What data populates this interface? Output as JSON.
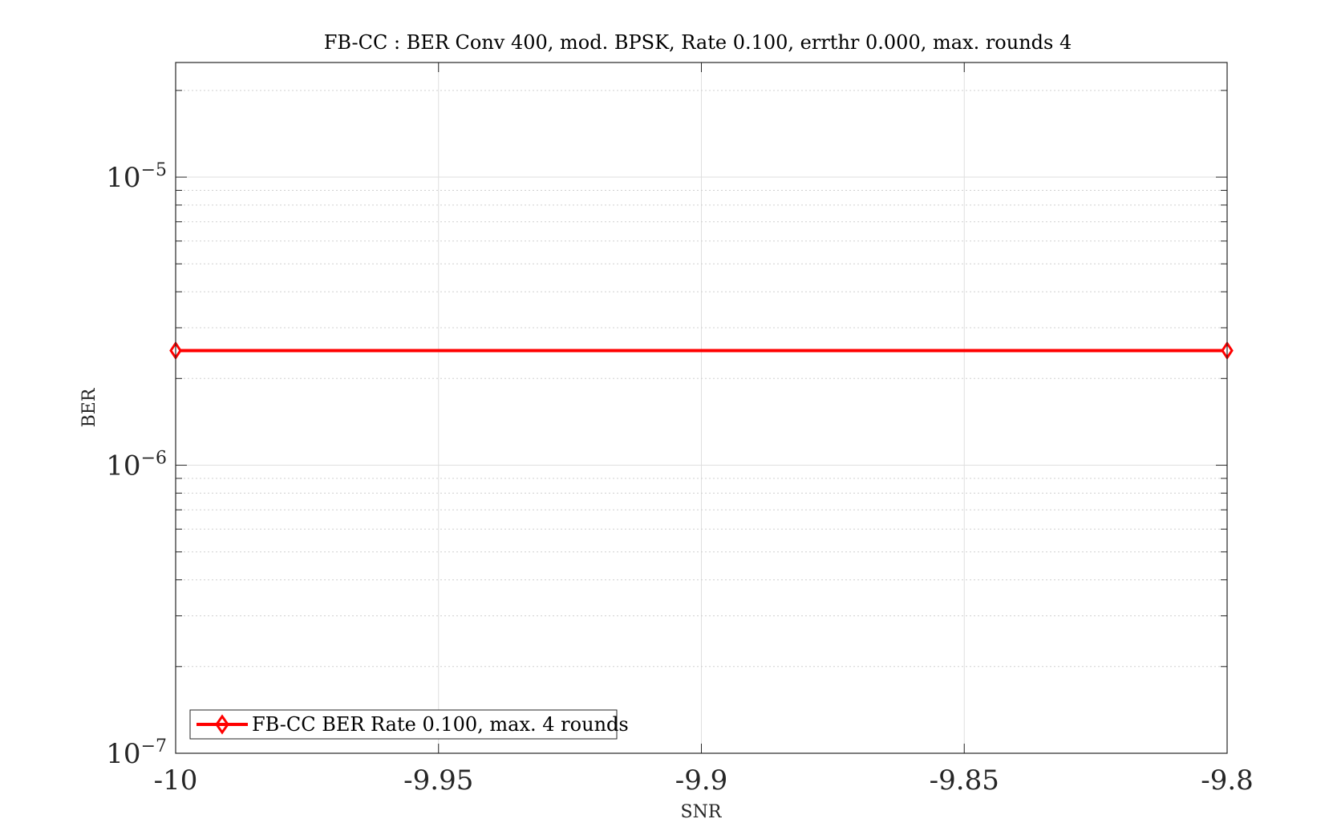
{
  "chart_data": {
    "type": "line",
    "title": "FB-CC : BER Conv 400, mod. BPSK, Rate 0.100, errthr 0.000, max. rounds 4",
    "xlabel": "SNR",
    "ylabel": "BER",
    "xlim": [
      -10,
      -9.8
    ],
    "ylim": [
      1e-07,
      2.5e-05
    ],
    "yscale": "log",
    "grid": true,
    "x_ticks": [
      -10,
      -9.95,
      -9.9,
      -9.85,
      -9.8
    ],
    "x_tick_labels": [
      "-10",
      "-9.95",
      "-9.9",
      "-9.85",
      "-9.8"
    ],
    "y_ticks": [
      1e-07,
      1e-06,
      1e-05
    ],
    "y_tick_labels": [
      {
        "base": "10",
        "exp": "−7"
      },
      {
        "base": "10",
        "exp": "−6"
      },
      {
        "base": "10",
        "exp": "−5"
      }
    ],
    "legend_position": "bottom-left",
    "series": [
      {
        "name": "FB-CC BER Rate 0.100, max. 4 rounds",
        "color": "#ff0000",
        "marker": "diamond",
        "x": [
          -10,
          -9.8
        ],
        "y": [
          2.5e-06,
          2.5e-06
        ]
      }
    ]
  }
}
